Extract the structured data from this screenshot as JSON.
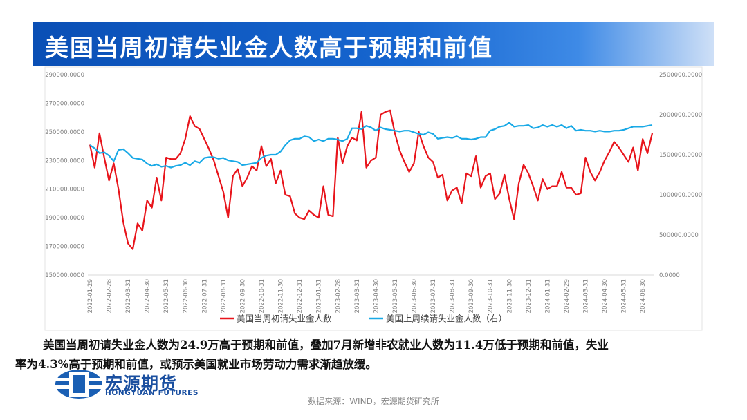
{
  "slide": {
    "title": "美国当周初请失业金人数高于预期和前值",
    "body": [
      "美国当周初请失业金人数为24.9万高于预期和前值，叠加7月新增非农就业人数为11.4万低于预期和前值，失业",
      "率为4.3%高于预期和前值，或预示美国就业市场劳动力需求渐趋放缓。"
    ],
    "logo_name": "宏源期货",
    "logo_english": "HONGYUAN FUTURES",
    "source": "数据来源：WIND，宏源期货研究所"
  },
  "chart_data": {
    "type": "line",
    "categories": [
      "2022-01-29",
      null,
      null,
      null,
      "2022-02-28",
      null,
      null,
      null,
      "2022-03-31",
      null,
      null,
      null,
      "2022-04-30",
      null,
      null,
      null,
      "2022-05-31",
      null,
      null,
      null,
      "2022-06-30",
      null,
      null,
      null,
      "2022-07-31",
      null,
      null,
      null,
      "2022-08-31",
      null,
      null,
      null,
      "2022-09-30",
      null,
      null,
      null,
      "2022-10-31",
      null,
      null,
      null,
      "2022-11-30",
      null,
      null,
      null,
      "2022-12-31",
      null,
      null,
      null,
      "2023-01-31",
      null,
      null,
      null,
      "2023-02-28",
      null,
      null,
      null,
      "2023-03-31",
      null,
      null,
      null,
      "2023-04-30",
      null,
      null,
      null,
      "2023-05-31",
      null,
      null,
      null,
      "2023-06-30",
      null,
      null,
      null,
      "2023-07-31",
      null,
      null,
      null,
      "2023-08-31",
      null,
      null,
      null,
      "2023-09-30",
      null,
      null,
      null,
      "2023-10-31",
      null,
      null,
      null,
      "2023-11-30",
      null,
      null,
      null,
      "2023-12-31",
      null,
      null,
      null,
      "2024-01-31",
      null,
      null,
      null,
      "2024-02-29",
      null,
      null,
      null,
      "2024-03-31",
      null,
      null,
      null,
      "2024-04-30",
      null,
      null,
      null,
      "2024-05-31",
      null,
      null,
      null,
      "2024-06-30",
      null,
      null
    ],
    "series": [
      {
        "name": "美国当周初请失业金人数",
        "color": "#e8141b",
        "values": [
          241000,
          225000,
          249000,
          232000,
          216000,
          228000,
          210000,
          187000,
          172000,
          168000,
          186000,
          181000,
          202000,
          197000,
          218000,
          202000,
          232000,
          231000,
          231000,
          235000,
          245000,
          261000,
          254000,
          252000,
          245000,
          238000,
          230000,
          219000,
          208000,
          190000,
          219000,
          224000,
          212000,
          218000,
          226000,
          223000,
          240000,
          226000,
          231000,
          214000,
          223000,
          206000,
          205000,
          193000,
          190000,
          189000,
          195000,
          192000,
          190000,
          212000,
          192000,
          191000,
          246000,
          228000,
          240000,
          246000,
          244000,
          264000,
          225000,
          230000,
          232000,
          262000,
          264000,
          265000,
          249000,
          237000,
          229000,
          222000,
          228000,
          250000,
          240000,
          232000,
          229000,
          218000,
          220000,
          202000,
          209000,
          211000,
          200000,
          221000,
          219000,
          233000,
          211000,
          219000,
          221000,
          203000,
          207000,
          220000,
          203000,
          189000,
          214000,
          227000,
          221000,
          212000,
          202000,
          217000,
          210000,
          212000,
          212000,
          222000,
          211000,
          211000,
          206000,
          207000,
          232000,
          222000,
          216000,
          222000,
          230000,
          236000,
          243000,
          239000,
          234000,
          229000,
          239000,
          223000,
          245000,
          235000,
          249000
        ]
      },
      {
        "name": "美国上周续请失业金人数（右）",
        "color": "#19a9e6",
        "axis": "y2",
        "values": [
          1620000,
          1580000,
          1520000,
          1530000,
          1490000,
          1420000,
          1560000,
          1570000,
          1520000,
          1460000,
          1450000,
          1440000,
          1390000,
          1360000,
          1380000,
          1350000,
          1360000,
          1340000,
          1360000,
          1370000,
          1400000,
          1370000,
          1420000,
          1400000,
          1460000,
          1470000,
          1470000,
          1450000,
          1460000,
          1430000,
          1420000,
          1410000,
          1370000,
          1380000,
          1390000,
          1400000,
          1460000,
          1490000,
          1500000,
          1500000,
          1540000,
          1620000,
          1680000,
          1700000,
          1700000,
          1730000,
          1720000,
          1670000,
          1690000,
          1670000,
          1700000,
          1700000,
          1690000,
          1670000,
          1700000,
          1830000,
          1830000,
          1820000,
          1860000,
          1840000,
          1800000,
          1840000,
          1820000,
          1810000,
          1800000,
          1790000,
          1800000,
          1800000,
          1780000,
          1760000,
          1750000,
          1780000,
          1760000,
          1700000,
          1710000,
          1720000,
          1710000,
          1730000,
          1700000,
          1700000,
          1690000,
          1700000,
          1720000,
          1720000,
          1800000,
          1820000,
          1850000,
          1860000,
          1900000,
          1850000,
          1860000,
          1860000,
          1870000,
          1830000,
          1840000,
          1870000,
          1850000,
          1870000,
          1850000,
          1870000,
          1830000,
          1860000,
          1800000,
          1810000,
          1800000,
          1800000,
          1790000,
          1800000,
          1790000,
          1790000,
          1800000,
          1800000,
          1810000,
          1830000,
          1850000,
          1850000,
          1850000,
          1860000,
          1870000
        ]
      }
    ],
    "ylim": [
      150000,
      290000
    ],
    "yticks": [
      {
        "value": 150000,
        "label": "150000.0000"
      },
      {
        "value": 170000,
        "label": "170000.0000"
      },
      {
        "value": 190000,
        "label": "190000.0000"
      },
      {
        "value": 210000,
        "label": "210000.0000"
      },
      {
        "value": 230000,
        "label": "230000.0000"
      },
      {
        "value": 250000,
        "label": "250000.0000"
      },
      {
        "value": 270000,
        "label": "270000.0000"
      },
      {
        "value": 290000,
        "label": "290000.0000"
      }
    ],
    "y2lim": [
      0,
      2500000
    ],
    "y2ticks": [
      {
        "value": 0,
        "label": "0.0000"
      },
      {
        "value": 500000,
        "label": "500000.0000"
      },
      {
        "value": 1000000,
        "label": "1000000.0000"
      },
      {
        "value": 1500000,
        "label": "1500000.0000"
      },
      {
        "value": 2000000,
        "label": "2000000.0000"
      },
      {
        "value": 2500000,
        "label": "2500000.0000"
      }
    ],
    "grid": false,
    "legend": "bottom"
  }
}
